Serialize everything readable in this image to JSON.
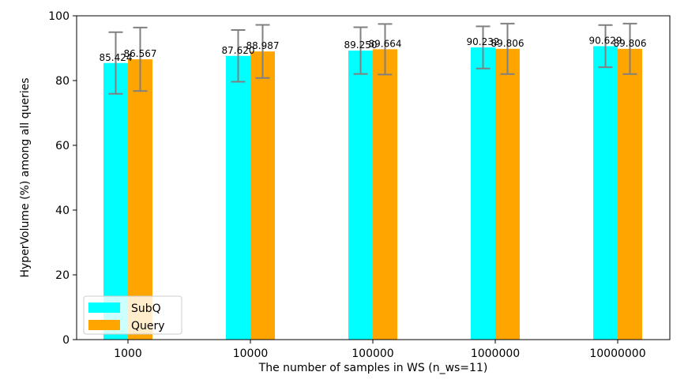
{
  "chart_data": {
    "type": "bar",
    "xlabel": "The number of samples in WS (n_ws=11)",
    "ylabel": "HyperVolume (%) among all queries",
    "categories": [
      "1000",
      "10000",
      "100000",
      "1000000",
      "10000000"
    ],
    "ylim": [
      0,
      100
    ],
    "yticks": [
      0,
      20,
      40,
      60,
      80,
      100
    ],
    "grid": false,
    "legend_position": "lower-left",
    "series": [
      {
        "name": "SubQ",
        "color": "#00ffff",
        "values": [
          85.424,
          87.62,
          89.25,
          90.232,
          90.629
        ],
        "labels": [
          "85.424",
          "87.620",
          "89.250",
          "90.232",
          "90.629"
        ],
        "error": [
          9.5,
          8.0,
          7.2,
          6.5,
          6.5
        ]
      },
      {
        "name": "Query",
        "color": "#ffa500",
        "values": [
          86.567,
          88.987,
          89.664,
          89.806,
          89.806
        ],
        "labels": [
          "86.567",
          "88.987",
          "89.664",
          "89.806",
          "89.806"
        ],
        "error": [
          9.8,
          8.2,
          7.8,
          7.8,
          7.8
        ]
      }
    ],
    "errorbar_color": "#808080"
  }
}
